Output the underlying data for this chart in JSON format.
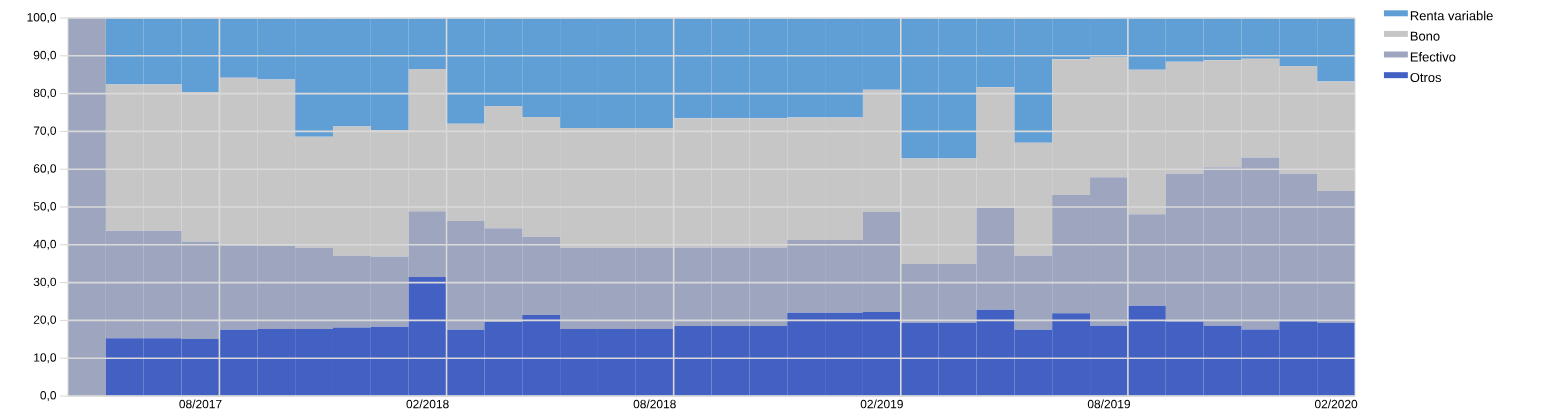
{
  "chart_data": {
    "type": "bar",
    "stacked": true,
    "grid": true,
    "legend": "top right",
    "categories": [
      null,
      null,
      null,
      "08/2017",
      null,
      null,
      null,
      null,
      null,
      "02/2018",
      null,
      null,
      null,
      null,
      null,
      "08/2018",
      null,
      null,
      null,
      null,
      null,
      "02/2019",
      null,
      null,
      null,
      null,
      null,
      "08/2019",
      null,
      null,
      null,
      null,
      null,
      "02/2020"
    ],
    "ylim": [
      0,
      100
    ],
    "yticks": [
      {
        "value": 0,
        "label": "0,0"
      },
      {
        "value": 10,
        "label": "10,0"
      },
      {
        "value": 20,
        "label": "20,0"
      },
      {
        "value": 30,
        "label": "30,0"
      },
      {
        "value": 40,
        "label": "40,0"
      },
      {
        "value": 50,
        "label": "50,0"
      },
      {
        "value": 60,
        "label": "60,0"
      },
      {
        "value": 70,
        "label": "70,0"
      },
      {
        "value": 80,
        "label": "80,0"
      },
      {
        "value": 90,
        "label": "90,0"
      },
      {
        "value": 100,
        "label": "100,0"
      }
    ],
    "series": [
      {
        "name": "Otros",
        "color": "#4360c3",
        "values": [
          0,
          15.3,
          15.3,
          15.1,
          17.5,
          17.7,
          17.7,
          18.1,
          18.3,
          31.5,
          17.5,
          19.6,
          21.4,
          17.7,
          17.7,
          17.7,
          18.5,
          18.5,
          18.5,
          22.0,
          22.0,
          22.2,
          19.4,
          19.4,
          22.8,
          17.5,
          21.9,
          18.6,
          23.9,
          19.7,
          18.6,
          17.6,
          19.8,
          19.4
        ]
      },
      {
        "name": "Efectivo",
        "color": "#9ea5bf",
        "values": [
          100,
          28.4,
          28.4,
          25.8,
          22.4,
          22.0,
          21.5,
          19.0,
          18.6,
          17.4,
          28.8,
          24.8,
          20.7,
          21.5,
          21.5,
          21.5,
          20.8,
          20.8,
          20.8,
          19.3,
          19.3,
          26.5,
          15.5,
          15.5,
          27.0,
          19.7,
          31.3,
          39.3,
          24.2,
          39.1,
          41.9,
          45.5,
          39.0,
          34.8
        ]
      },
      {
        "name": "Bono",
        "color": "#c6c6c6",
        "values": [
          0,
          38.7,
          38.7,
          39.5,
          44.3,
          44.0,
          29.4,
          34.2,
          33.5,
          37.6,
          25.7,
          32.3,
          31.7,
          31.7,
          31.7,
          31.7,
          34.2,
          34.2,
          34.2,
          32.4,
          32.4,
          32.3,
          27.9,
          27.9,
          31.9,
          29.8,
          35.9,
          31.8,
          38.2,
          29.6,
          28.3,
          26.1,
          28.5,
          29.0
        ]
      },
      {
        "name": "Renta variable",
        "color": "#609ed6",
        "values": [
          0,
          17.6,
          17.6,
          19.6,
          15.8,
          16.3,
          31.4,
          28.7,
          29.6,
          13.5,
          28.0,
          23.3,
          26.2,
          29.1,
          29.1,
          29.1,
          26.5,
          26.5,
          26.5,
          26.3,
          26.3,
          19.0,
          37.2,
          37.2,
          18.3,
          33.0,
          10.9,
          10.3,
          13.7,
          11.6,
          11.2,
          10.8,
          12.7,
          16.8
        ]
      }
    ]
  }
}
